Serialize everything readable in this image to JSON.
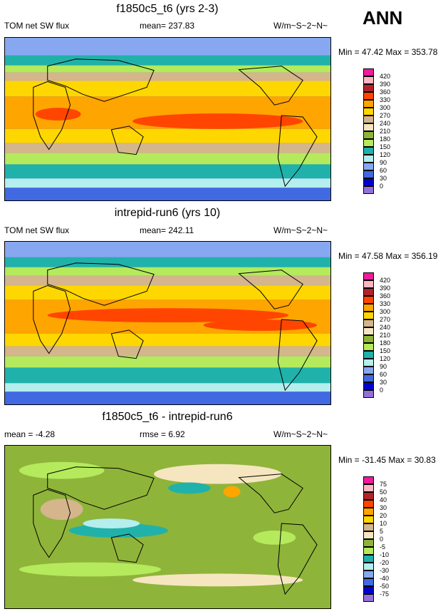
{
  "season_label": "ANN",
  "panels": [
    {
      "title": "f1850c5_t6 (yrs 2-3)",
      "left_label": "TOM net SW flux",
      "center_label": "mean= 237.83",
      "right_label": "W/m~S~2~N~",
      "minmax": "Min =  47.42 Max = 353.78",
      "levels": [
        "420",
        "390",
        "360",
        "330",
        "300",
        "270",
        "240",
        "210",
        "180",
        "150",
        "120",
        "90",
        "60",
        "30",
        "0"
      ],
      "colors": [
        "#f01a9c",
        "#ffb6c2",
        "#b2222c",
        "#ff4500",
        "#ffa500",
        "#ffd700",
        "#d4b58c",
        "#f5e6c0",
        "#8fb43a",
        "#b4ea5c",
        "#20b2aa",
        "#b4eeee",
        "#87a8f0",
        "#4169e1",
        "#0000cd",
        "#9370db"
      ]
    },
    {
      "title": "intrepid-run6 (yrs 10)",
      "left_label": "TOM net SW flux",
      "center_label": "mean= 242.11",
      "right_label": "W/m~S~2~N~",
      "minmax": "Min =  47.58 Max = 356.19",
      "levels": [
        "420",
        "390",
        "360",
        "330",
        "300",
        "270",
        "240",
        "210",
        "180",
        "150",
        "120",
        "90",
        "60",
        "30",
        "0"
      ],
      "colors": [
        "#f01a9c",
        "#ffb6c2",
        "#b2222c",
        "#ff4500",
        "#ffa500",
        "#ffd700",
        "#d4b58c",
        "#f5e6c0",
        "#8fb43a",
        "#b4ea5c",
        "#20b2aa",
        "#b4eeee",
        "#87a8f0",
        "#4169e1",
        "#0000cd",
        "#9370db"
      ]
    },
    {
      "title": "f1850c5_t6 - intrepid-run6",
      "left_label": "mean =  -4.28",
      "center_label": "rmse =    6.92",
      "right_label": "W/m~S~2~N~",
      "minmax": "Min = -31.45 Max =  30.83",
      "levels": [
        "75",
        "50",
        "40",
        "30",
        "20",
        "10",
        "5",
        "0",
        "-5",
        "-10",
        "-20",
        "-30",
        "-40",
        "-50",
        "-75"
      ],
      "colors": [
        "#f01a9c",
        "#ffb6c2",
        "#b2222c",
        "#ff4500",
        "#ffa500",
        "#ffd700",
        "#d4b58c",
        "#f5e6c0",
        "#8fb43a",
        "#b4ea5c",
        "#20b2aa",
        "#b4eeee",
        "#87a8f0",
        "#4169e1",
        "#0000cd",
        "#9370db"
      ]
    }
  ]
}
